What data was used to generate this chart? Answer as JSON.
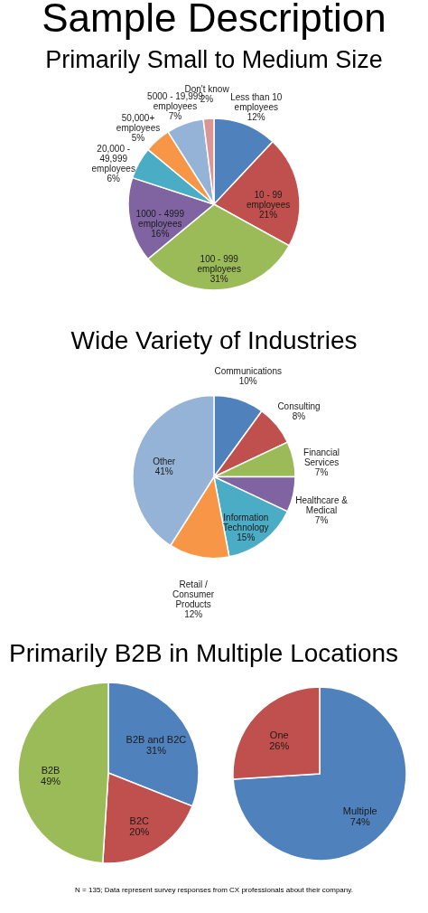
{
  "chart_data": [
    {
      "type": "pie",
      "title": "Sample Description",
      "subtitle": "Primarily Small to Medium Size",
      "categories": [
        "Less than 10 employees",
        "10 - 99 employees",
        "100 - 999 employees",
        "1000 - 4999 employees",
        "20,000 - 49,999 employees",
        "50,000+ employees",
        "5000 - 19,999 employees",
        "Don't know"
      ],
      "values": [
        12,
        21,
        31,
        16,
        6,
        5,
        7,
        2
      ],
      "value_labels": [
        "12%",
        "21%",
        "31%",
        "16%",
        "6%",
        "5%",
        "7%",
        "2%"
      ],
      "colors": [
        "#4f81bd",
        "#c0504d",
        "#9bbb59",
        "#8064a2",
        "#4bacc6",
        "#f79646",
        "#95b3d7",
        "#d99694"
      ]
    },
    {
      "type": "pie",
      "title": "Wide Variety of Industries",
      "categories": [
        "Communications",
        "Consulting",
        "Financial Services",
        "Healthcare & Medical",
        "Information Technology",
        "Retail / Consumer Products",
        "Other"
      ],
      "values": [
        10,
        8,
        7,
        7,
        15,
        12,
        41
      ],
      "value_labels": [
        "10%",
        "8%",
        "7%",
        "7%",
        "15%",
        "12%",
        "41%"
      ],
      "colors": [
        "#4f81bd",
        "#c0504d",
        "#9bbb59",
        "#8064a2",
        "#4bacc6",
        "#f79646",
        "#95b3d7"
      ]
    },
    {
      "type": "pie",
      "title": "Primarily B2B in Multiple Locations",
      "categories": [
        "B2B and B2C",
        "B2C",
        "B2B"
      ],
      "values": [
        31,
        20,
        49
      ],
      "value_labels": [
        "31%",
        "20%",
        "49%"
      ],
      "colors": [
        "#4f81bd",
        "#c0504d",
        "#9bbb59"
      ],
      "annotations": [
        "N = 135; Data represent survey responses from CX professionals about their company."
      ]
    },
    {
      "type": "pie",
      "categories": [
        "Multiple",
        "One"
      ],
      "values": [
        74,
        26
      ],
      "value_labels": [
        "74%",
        "26%"
      ],
      "colors": [
        "#4f81bd",
        "#c0504d"
      ]
    }
  ]
}
